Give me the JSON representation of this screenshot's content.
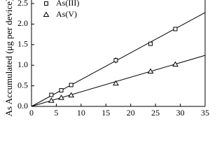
{
  "chart_data": {
    "type": "scatter",
    "y_label": "As Accumulated (μg per device)",
    "x": [
      4,
      6,
      8,
      17,
      24,
      29
    ],
    "series": [
      {
        "name": "As(III)",
        "color": "#000000",
        "marker": "square",
        "values": [
          0.28,
          0.39,
          0.52,
          1.12,
          1.52,
          1.88
        ],
        "errors": [
          0.02,
          0.02,
          0.02,
          0.07,
          0.02,
          0.03
        ]
      },
      {
        "name": "As(V)",
        "color": "#000000",
        "marker": "triangle",
        "values": [
          0.14,
          0.21,
          0.27,
          0.56,
          0.85,
          1.02
        ],
        "errors": [
          0.02,
          0.02,
          0.02,
          0.03,
          0.02,
          0.03
        ]
      }
    ],
    "fit_lines": [
      {
        "x": [
          0,
          35
        ],
        "values": [
          0,
          2.28
        ]
      },
      {
        "x": [
          0,
          35
        ],
        "values": [
          0,
          1.24
        ]
      }
    ],
    "xlim": [
      0,
      35
    ],
    "xticks": [
      0,
      5,
      10,
      15,
      20,
      25,
      30,
      35
    ],
    "ylim": [
      0,
      2.5
    ],
    "yticks": [
      {
        "value": 0,
        "label": "0.0"
      },
      0.5,
      {
        "value": 1,
        "label": "1.0"
      },
      1.5,
      {
        "value": 2,
        "label": "2.0"
      },
      2.5
    ],
    "legend": "upper left"
  }
}
